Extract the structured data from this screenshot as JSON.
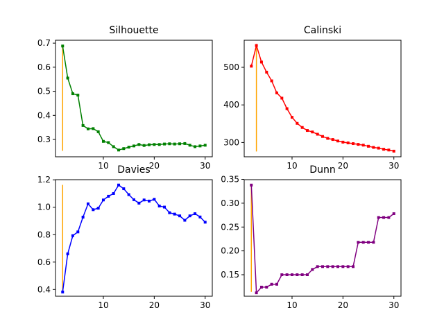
{
  "chart_data": [
    {
      "type": "line",
      "title": "Silhouette",
      "xlabel": "",
      "ylabel": "",
      "xlim": [
        0.6,
        31.4
      ],
      "ylim": [
        0.228,
        0.712
      ],
      "xticks": [
        10,
        20,
        30
      ],
      "yticks": [
        0.3,
        0.4,
        0.5,
        0.6,
        0.7
      ],
      "ytick_labels": [
        "0.3",
        "0.4",
        "0.5",
        "0.6",
        "0.7"
      ],
      "grid": false,
      "color": "#008000",
      "marker": "square",
      "x": [
        2,
        3,
        4,
        5,
        6,
        7,
        8,
        9,
        10,
        11,
        12,
        13,
        14,
        15,
        16,
        17,
        18,
        19,
        20,
        21,
        22,
        23,
        24,
        25,
        26,
        27,
        28,
        29,
        30
      ],
      "values": [
        0.688,
        0.555,
        0.49,
        0.484,
        0.358,
        0.344,
        0.345,
        0.332,
        0.292,
        0.287,
        0.27,
        0.256,
        0.262,
        0.268,
        0.273,
        0.279,
        0.275,
        0.278,
        0.279,
        0.279,
        0.281,
        0.282,
        0.281,
        0.282,
        0.283,
        0.276,
        0.27,
        0.273,
        0.276
      ],
      "vline": {
        "x": 2,
        "from": 0.253,
        "to": 0.688,
        "color": "#ffa500"
      }
    },
    {
      "type": "line",
      "title": "Calinski",
      "xlabel": "",
      "ylabel": "",
      "xlim": [
        0.6,
        31.4
      ],
      "ylim": [
        262,
        572
      ],
      "xticks": [
        10,
        20,
        30
      ],
      "yticks": [
        300,
        400,
        500
      ],
      "ytick_labels": [
        "300",
        "400",
        "500"
      ],
      "grid": false,
      "color": "#ff0000",
      "marker": "square",
      "x": [
        2,
        3,
        4,
        5,
        6,
        7,
        8,
        9,
        10,
        11,
        12,
        13,
        14,
        15,
        16,
        17,
        18,
        19,
        20,
        21,
        22,
        23,
        24,
        25,
        26,
        27,
        28,
        29,
        30
      ],
      "values": [
        503,
        558,
        514,
        487,
        464,
        432,
        418,
        390,
        367,
        351,
        340,
        332,
        328,
        322,
        316,
        311,
        308,
        304,
        301,
        299,
        297,
        295,
        293,
        290,
        287,
        285,
        282,
        280,
        277
      ],
      "vline": {
        "x": 3,
        "from": 276,
        "to": 558,
        "color": "#ffa500"
      }
    },
    {
      "type": "line",
      "title": "Davies",
      "xlabel": "",
      "ylabel": "",
      "xlim": [
        0.6,
        31.4
      ],
      "ylim": [
        0.351,
        1.201
      ],
      "xticks": [
        10,
        20,
        30
      ],
      "yticks": [
        0.4,
        0.6,
        0.8,
        1.0,
        1.2
      ],
      "ytick_labels": [
        "0.4",
        "0.6",
        "0.8",
        "1.0",
        "1.2"
      ],
      "grid": false,
      "color": "#0000ff",
      "marker": "square",
      "x": [
        2,
        3,
        4,
        5,
        6,
        7,
        8,
        9,
        10,
        11,
        12,
        13,
        14,
        15,
        16,
        17,
        18,
        19,
        20,
        21,
        22,
        23,
        24,
        25,
        26,
        27,
        28,
        29,
        30
      ],
      "values": [
        0.382,
        0.66,
        0.793,
        0.82,
        0.928,
        1.025,
        0.982,
        0.993,
        1.053,
        1.08,
        1.1,
        1.162,
        1.135,
        1.092,
        1.055,
        1.03,
        1.053,
        1.045,
        1.058,
        1.009,
        1.001,
        0.96,
        0.95,
        0.937,
        0.905,
        0.937,
        0.953,
        0.929,
        0.891
      ],
      "vline": {
        "x": 2,
        "from": 0.382,
        "to": 1.163,
        "color": "#ffa500"
      }
    },
    {
      "type": "line",
      "title": "Dunn",
      "xlabel": "",
      "ylabel": "",
      "xlim": [
        0.6,
        31.4
      ],
      "ylim": [
        0.1049,
        0.3493
      ],
      "xticks": [
        10,
        20,
        30
      ],
      "yticks": [
        0.15,
        0.2,
        0.25,
        0.3,
        0.35
      ],
      "ytick_labels": [
        "0.15",
        "0.20",
        "0.25",
        "0.30",
        "0.35"
      ],
      "grid": false,
      "color": "#800080",
      "marker": "square",
      "x": [
        2,
        3,
        4,
        5,
        6,
        7,
        8,
        9,
        10,
        11,
        12,
        13,
        14,
        15,
        16,
        17,
        18,
        19,
        20,
        21,
        22,
        23,
        24,
        25,
        26,
        27,
        28,
        29,
        30
      ],
      "values": [
        0.338,
        0.112,
        0.124,
        0.124,
        0.13,
        0.13,
        0.15,
        0.15,
        0.15,
        0.15,
        0.15,
        0.15,
        0.161,
        0.167,
        0.167,
        0.167,
        0.167,
        0.167,
        0.167,
        0.167,
        0.167,
        0.218,
        0.218,
        0.218,
        0.218,
        0.27,
        0.27,
        0.27,
        0.278
      ],
      "vline": {
        "x": 2,
        "from": 0.114,
        "to": 0.338,
        "color": "#ffa500"
      }
    }
  ]
}
